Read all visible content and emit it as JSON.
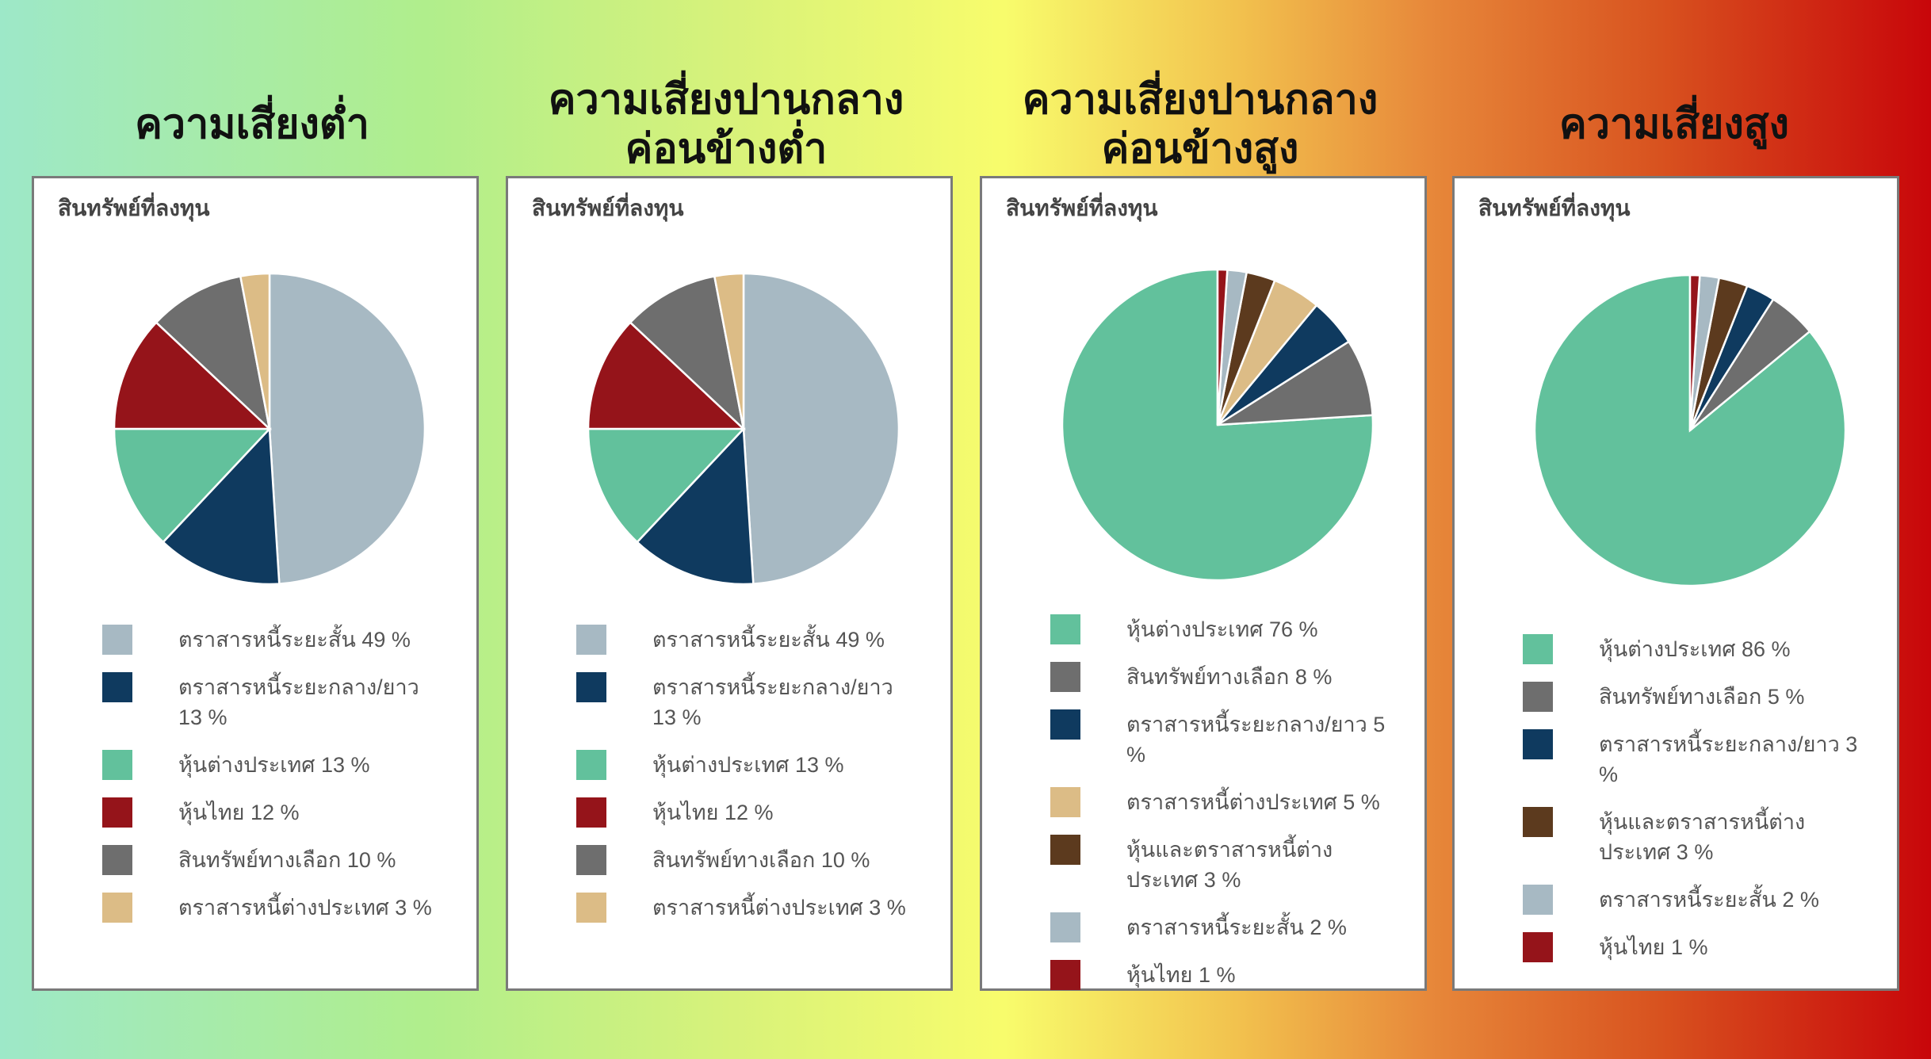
{
  "panels": [
    {
      "heading": "ความเสี่ยงต่ำ",
      "title": "สินทรัพย์ที่ลงทุน"
    },
    {
      "heading": "ความเสี่ยงปานกลาง\nค่อนข้างต่ำ",
      "title": "สินทรัพย์ที่ลงทุน"
    },
    {
      "heading": "ความเสี่ยงปานกลาง\nค่อนข้างสูง",
      "title": "สินทรัพย์ที่ลงทุน"
    },
    {
      "heading": "ความเสี่ยงสูง",
      "title": "สินทรัพย์ที่ลงทุน"
    }
  ],
  "chart_data": [
    {
      "type": "pie",
      "title": "สินทรัพย์ที่ลงทุน",
      "legend": "below",
      "slices": [
        {
          "label": "ตราสารหนี้ระยะสั้น 49 %",
          "value": 49,
          "color": "#a7b9c3"
        },
        {
          "label": "ตราสารหนี้ระยะกลาง/ยาว 13 %",
          "value": 13,
          "color": "#0f3a5f"
        },
        {
          "label": "หุ้นต่างประเทศ 13 %",
          "value": 13,
          "color": "#62c19c"
        },
        {
          "label": "หุ้นไทย 12 %",
          "value": 12,
          "color": "#95141a"
        },
        {
          "label": "สินทรัพย์ทางเลือก 10 %",
          "value": 10,
          "color": "#6e6e6e"
        },
        {
          "label": "ตราสารหนี้ต่างประเทศ 3 %",
          "value": 3,
          "color": "#dcbc86"
        }
      ]
    },
    {
      "type": "pie",
      "title": "สินทรัพย์ที่ลงทุน",
      "legend": "below",
      "slices": [
        {
          "label": "ตราสารหนี้ระยะสั้น 49 %",
          "value": 49,
          "color": "#a7b9c3"
        },
        {
          "label": "ตราสารหนี้ระยะกลาง/ยาว 13 %",
          "value": 13,
          "color": "#0f3a5f"
        },
        {
          "label": "หุ้นต่างประเทศ 13 %",
          "value": 13,
          "color": "#62c19c"
        },
        {
          "label": "หุ้นไทย 12 %",
          "value": 12,
          "color": "#95141a"
        },
        {
          "label": "สินทรัพย์ทางเลือก 10 %",
          "value": 10,
          "color": "#6e6e6e"
        },
        {
          "label": "ตราสารหนี้ต่างประเทศ 3 %",
          "value": 3,
          "color": "#dcbc86"
        }
      ]
    },
    {
      "type": "pie",
      "title": "สินทรัพย์ที่ลงทุน",
      "legend": "below",
      "slices": [
        {
          "label": "หุ้นต่างประเทศ 76 %",
          "value": 76,
          "color": "#62c19c"
        },
        {
          "label": "สินทรัพย์ทางเลือก 8 %",
          "value": 8,
          "color": "#6e6e6e"
        },
        {
          "label": "ตราสารหนี้ระยะกลาง/ยาว 5 %",
          "value": 5,
          "color": "#0f3a5f"
        },
        {
          "label": "ตราสารหนี้ต่างประเทศ 5 %",
          "value": 5,
          "color": "#dcbc86"
        },
        {
          "label": "หุ้นและตราสารหนี้ต่างประเทศ 3 %",
          "value": 3,
          "color": "#5c3a1e"
        },
        {
          "label": "ตราสารหนี้ระยะสั้น 2 %",
          "value": 2,
          "color": "#a7b9c3"
        },
        {
          "label": "หุ้นไทย 1 %",
          "value": 1,
          "color": "#95141a"
        }
      ]
    },
    {
      "type": "pie",
      "title": "สินทรัพย์ที่ลงทุน",
      "legend": "below",
      "slices": [
        {
          "label": "หุ้นต่างประเทศ 86 %",
          "value": 86,
          "color": "#62c19c"
        },
        {
          "label": "สินทรัพย์ทางเลือก 5 %",
          "value": 5,
          "color": "#6e6e6e"
        },
        {
          "label": "ตราสารหนี้ระยะกลาง/ยาว 3 %",
          "value": 3,
          "color": "#0f3a5f"
        },
        {
          "label": "หุ้นและตราสารหนี้ต่างประเทศ 3 %",
          "value": 3,
          "color": "#5c3a1e"
        },
        {
          "label": "ตราสารหนี้ระยะสั้น 2 %",
          "value": 2,
          "color": "#a7b9c3"
        },
        {
          "label": "หุ้นไทย 1 %",
          "value": 1,
          "color": "#95141a"
        }
      ]
    }
  ]
}
